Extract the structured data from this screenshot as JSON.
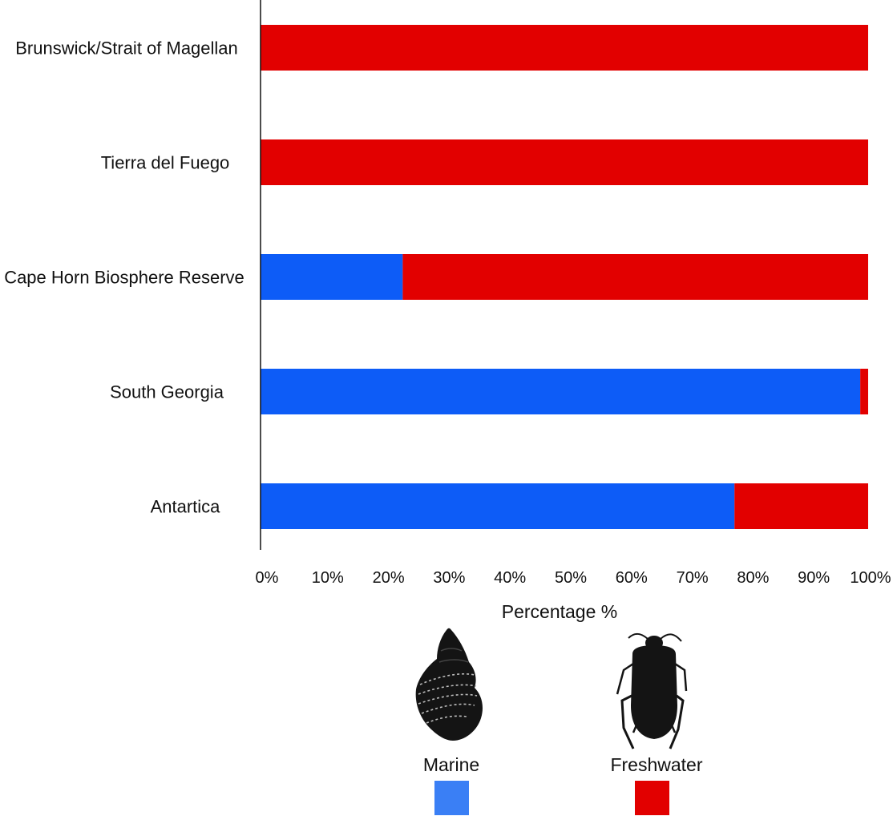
{
  "chart_data": {
    "type": "bar",
    "orientation": "horizontal",
    "stacked": true,
    "categories": [
      "Brunswick/Strait of Magellan",
      "Tierra del Fuego",
      "Cape Horn Biosphere Reserve",
      "South Georgia",
      "Antartica"
    ],
    "series": [
      {
        "name": "Marine",
        "color": "#0d5cf7",
        "values": [
          0,
          0,
          23.4,
          98.7,
          78
        ]
      },
      {
        "name": "Freshwater",
        "color": "#e20000",
        "values": [
          100,
          100,
          76.6,
          1.3,
          22
        ]
      }
    ],
    "xlabel": "Percentage %",
    "ylabel": "",
    "xlim": [
      0,
      100
    ],
    "xticks": [
      "0%",
      "10%",
      "20%",
      "30%",
      "40%",
      "50%",
      "60%",
      "70%",
      "80%",
      "90%",
      "100%"
    ],
    "grid": false,
    "legend": {
      "placement": "bottom",
      "entries": [
        {
          "label": "Marine",
          "color": "#3a7ff5",
          "icon": "snail-shell-icon"
        },
        {
          "label": "Freshwater",
          "color": "#e20000",
          "icon": "water-beetle-icon"
        }
      ]
    }
  }
}
